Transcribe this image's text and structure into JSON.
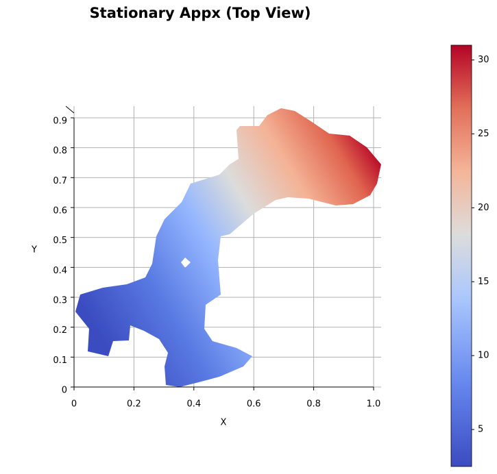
{
  "chart_data": {
    "type": "surface",
    "title": "Stationary Appx (Top View)",
    "x_label": "X",
    "y_label": "Y",
    "xlim": [
      0,
      1
    ],
    "xticks": [
      0.0,
      0.2,
      0.4,
      0.6,
      0.8,
      {
        "value": 1,
        "label": "1.0"
      }
    ],
    "ylim": [
      0,
      0.9
    ],
    "yticks": [
      0.0,
      0.1,
      0.2,
      0.3,
      0.4,
      0.5,
      0.6,
      0.7,
      0.8,
      0.9
    ],
    "grid": true,
    "colormap": "coolwarm",
    "colorbar": {
      "clim": [
        2.5,
        31
      ],
      "ticks": [
        5,
        10,
        15,
        20,
        25,
        30
      ]
    }
  }
}
